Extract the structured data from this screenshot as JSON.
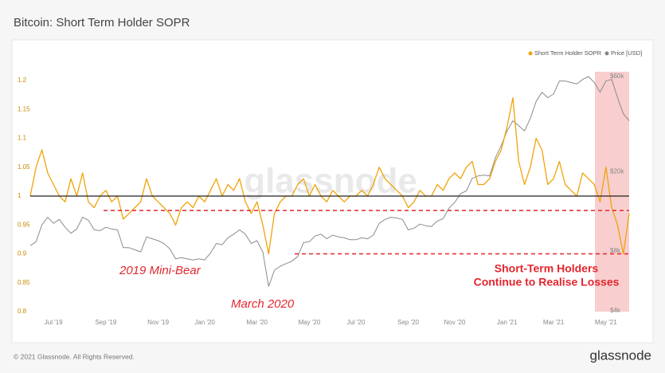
{
  "chart_data": {
    "type": "line",
    "title": "Bitcoin: Short Term Holder SOPR",
    "x": [
      null,
      null,
      null,
      null,
      "Jul '19",
      null,
      null,
      null,
      null,
      null,
      null,
      null,
      null,
      "Sep '19",
      null,
      null,
      null,
      null,
      null,
      null,
      null,
      null,
      "Nov '19",
      null,
      null,
      null,
      null,
      null,
      null,
      null,
      "Jan '20",
      null,
      null,
      null,
      null,
      null,
      null,
      null,
      null,
      "Mar '20",
      null,
      null,
      null,
      null,
      null,
      null,
      null,
      null,
      "May '20",
      null,
      null,
      null,
      null,
      null,
      null,
      null,
      "Jul '20",
      null,
      null,
      null,
      null,
      null,
      null,
      null,
      null,
      "Sep '20",
      null,
      null,
      null,
      null,
      null,
      null,
      null,
      "Nov '20",
      null,
      null,
      null,
      null,
      null,
      null,
      null,
      null,
      "Jan '21",
      null,
      null,
      null,
      null,
      null,
      null,
      null,
      "Mar '21",
      null,
      null,
      null,
      null,
      null,
      null,
      null,
      null,
      "May '21",
      null,
      null,
      null,
      null
    ],
    "series": [
      {
        "name": "Short Term Holder SOPR",
        "color": "#f0a30a",
        "values": [
          1.0,
          1.05,
          1.08,
          1.04,
          1.02,
          1.0,
          0.99,
          1.03,
          1.0,
          1.04,
          0.99,
          0.98,
          1.0,
          1.01,
          0.99,
          1.0,
          0.96,
          0.97,
          0.98,
          0.99,
          1.03,
          1.0,
          0.99,
          0.98,
          0.97,
          0.95,
          0.98,
          0.99,
          0.98,
          1.0,
          0.99,
          1.01,
          1.03,
          1.0,
          1.02,
          1.01,
          1.03,
          0.99,
          0.97,
          0.99,
          0.95,
          0.9,
          0.97,
          0.99,
          1.0,
          1.0,
          1.02,
          1.03,
          1.0,
          1.02,
          1.0,
          0.99,
          1.01,
          1.0,
          0.99,
          1.0,
          1.0,
          1.01,
          1.0,
          1.02,
          1.05,
          1.03,
          1.02,
          1.01,
          1.0,
          0.98,
          0.99,
          1.01,
          1.0,
          1.0,
          1.02,
          1.01,
          1.03,
          1.04,
          1.03,
          1.05,
          1.06,
          1.02,
          1.02,
          1.03,
          1.06,
          1.08,
          1.12,
          1.17,
          1.06,
          1.02,
          1.05,
          1.1,
          1.08,
          1.02,
          1.03,
          1.06,
          1.02,
          1.01,
          1.0,
          1.04,
          1.03,
          1.02,
          0.99,
          1.05,
          0.98,
          0.95,
          0.9,
          0.97
        ]
      },
      {
        "name": "Price [USD]",
        "color": "#8c8c8c",
        "axis": "y2",
        "values": [
          8500,
          8900,
          10800,
          11800,
          11000,
          11500,
          10500,
          9800,
          10300,
          11800,
          11400,
          10200,
          10100,
          10500,
          10300,
          10200,
          8300,
          8300,
          8100,
          7900,
          9400,
          9200,
          9000,
          8700,
          8200,
          7300,
          7400,
          7300,
          7200,
          7300,
          7200,
          7800,
          8700,
          8600,
          9300,
          9700,
          10200,
          9700,
          8700,
          9000,
          7900,
          5300,
          6400,
          6700,
          6900,
          7100,
          7500,
          8800,
          8900,
          9500,
          9700,
          9200,
          9600,
          9400,
          9300,
          9100,
          9100,
          9300,
          9200,
          9600,
          11000,
          11500,
          11800,
          11700,
          11500,
          10200,
          10400,
          10900,
          10700,
          10600,
          11300,
          11600,
          13100,
          14000,
          15500,
          16000,
          18500,
          19000,
          19200,
          19000,
          23500,
          27000,
          32000,
          36000,
          34000,
          32000,
          37000,
          45000,
          50000,
          47000,
          49000,
          57000,
          57000,
          56000,
          55000,
          58000,
          60000,
          56000,
          50000,
          57000,
          58000,
          47000,
          39000,
          36000
        ]
      }
    ],
    "ylim": [
      0.8,
      1.2
    ],
    "yticks": [
      0.8,
      0.85,
      0.9,
      0.95,
      1,
      1.05,
      1.1,
      1.15,
      1.2
    ],
    "y2lim": [
      4000,
      60000
    ],
    "y2scale": "log",
    "y2ticks": [
      {
        "value": 4000,
        "label": "$4k"
      },
      {
        "value": 8000,
        "label": "$8k"
      },
      {
        "value": 20000,
        "label": "$20k"
      },
      {
        "value": 60000,
        "label": "$60k"
      }
    ],
    "reference_lines": [
      1,
      0.975,
      0.9
    ],
    "annotations": [
      "2019 Mini-Bear",
      "March 2020",
      "Short-Term Holders",
      "Continue to Realise Losses"
    ],
    "watermark": "glassnode",
    "copyright": "© 2021 Glassnode. All Rights Reserved.",
    "brand": "glassnode"
  }
}
